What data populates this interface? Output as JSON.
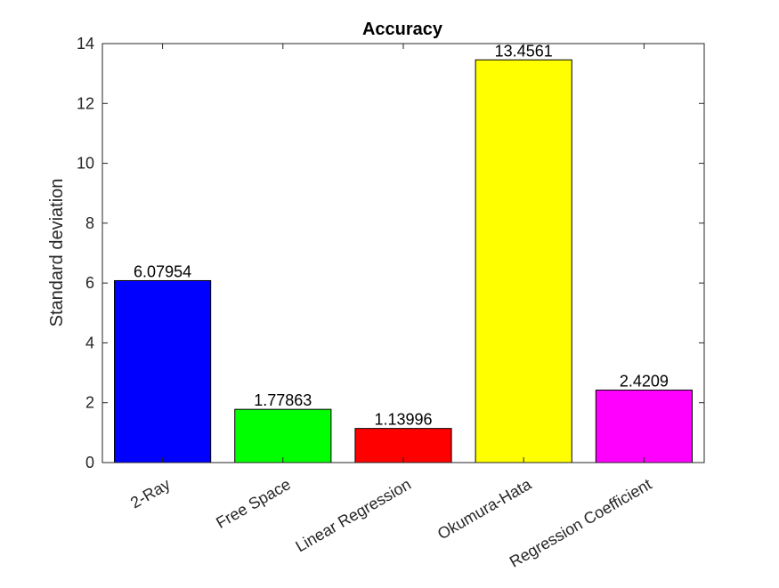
{
  "chart_data": {
    "type": "bar",
    "title": "Accuracy",
    "xlabel": "",
    "ylabel": "Standard deviation",
    "categories": [
      "2-Ray",
      "Free Space",
      "Linear Regression",
      "Okumura-Hata",
      "Regression Coefficient"
    ],
    "values": [
      6.07954,
      1.77863,
      1.13996,
      13.4561,
      2.4209
    ],
    "value_labels": [
      "6.07954",
      "1.77863",
      "1.13996",
      "13.4561",
      "2.4209"
    ],
    "colors": [
      "#0000ff",
      "#00ff00",
      "#ff0000",
      "#ffff00",
      "#ff00ff"
    ],
    "ylim": [
      0,
      14
    ],
    "yticks": [
      0,
      2,
      4,
      6,
      8,
      10,
      12,
      14
    ],
    "ytick_labels": [
      "0",
      "2",
      "4",
      "6",
      "8",
      "10",
      "12",
      "14"
    ],
    "grid": false,
    "legend": false,
    "axis_color": "#262626",
    "bar_edge_color": "#000000"
  }
}
